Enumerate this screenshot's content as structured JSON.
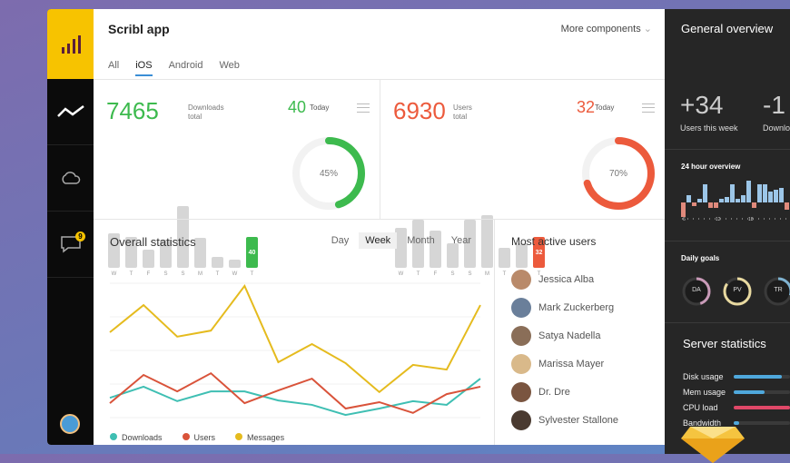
{
  "app": {
    "title": "Scribl app",
    "more_label": "More components",
    "tabs": [
      "All",
      "iOS",
      "Android",
      "Web"
    ],
    "active_tab": "iOS",
    "notification_count": "9"
  },
  "downloads": {
    "value": "7465",
    "label1": "Downloads",
    "label2": "total",
    "today": "40",
    "today_label": "Today",
    "percent": "45%",
    "percent_value": 45,
    "color": "#3dba4e",
    "days": [
      "W",
      "T",
      "F",
      "S",
      "S",
      "M",
      "T",
      "W",
      "T"
    ],
    "bars": [
      56,
      50,
      30,
      46,
      100,
      48,
      17,
      13,
      50
    ],
    "highlight_label": "40"
  },
  "users": {
    "value": "6930",
    "label1": "Users",
    "label2": "total",
    "today": "32",
    "today_label": "Today",
    "percent": "70%",
    "percent_value": 70,
    "color": "#ec5a3c",
    "days": [
      "W",
      "T",
      "F",
      "S",
      "S",
      "M",
      "T",
      "W",
      "T"
    ],
    "bars": [
      65,
      78,
      60,
      40,
      78,
      85,
      33,
      40,
      50
    ],
    "highlight_label": "32"
  },
  "statistics": {
    "title": "Overall statistics",
    "ranges": [
      "Day",
      "Week",
      "Month",
      "Year"
    ],
    "active_range": "Week",
    "chart_data": {
      "type": "line",
      "ylim": [
        0,
        40
      ],
      "series": [
        {
          "name": "Downloads",
          "color": "#3fbfb3",
          "values": [
            5.9,
            9.2,
            4.9,
            7.8,
            7.8,
            5.1,
            3.8,
            0.8,
            2.7,
            4.9,
            3.8,
            11.6
          ]
        },
        {
          "name": "Users",
          "color": "#d9533a",
          "values": [
            4.3,
            12.7,
            7.8,
            13.2,
            4.3,
            8.1,
            11.6,
            2.7,
            4.6,
            1.4,
            7.0,
            9.2
          ]
        },
        {
          "name": "Messages",
          "color": "#e5bb1e",
          "values": [
            25.4,
            33.5,
            24.1,
            25.9,
            39.2,
            16.5,
            21.9,
            16.2,
            7.6,
            15.7,
            14.3,
            33.5
          ]
        }
      ]
    }
  },
  "active_users": {
    "title": "Most active users",
    "list": [
      {
        "name": "Jessica Alba",
        "color": "#b98a6a"
      },
      {
        "name": "Mark Zuckerberg",
        "color": "#6a7f9a"
      },
      {
        "name": "Satya Nadella",
        "color": "#8a6e58"
      },
      {
        "name": "Marissa Mayer",
        "color": "#d9b98a"
      },
      {
        "name": "Dr. Dre",
        "color": "#7a5540"
      },
      {
        "name": "Sylvester Stallone",
        "color": "#4a3a30"
      }
    ]
  },
  "overview": {
    "title": "General overview",
    "stat1_value": "+34",
    "stat1_label": "Users this week",
    "stat2_value": "-1",
    "stat2_label": "Downlo",
    "hour_title": "24 hour overview",
    "hour_ticks": [
      "6",
      "12",
      "18"
    ],
    "hour_bars": [
      -8,
      4,
      -2,
      2,
      10,
      -3,
      -3,
      2,
      3,
      10,
      2,
      4,
      12,
      -3,
      10,
      10,
      6,
      7,
      8,
      -4,
      -5
    ],
    "goals_title": "Daily goals",
    "goals": [
      {
        "label": "DA",
        "color": "#c99ab8",
        "pct": 45
      },
      {
        "label": "PV",
        "color": "#e8d9a0",
        "pct": 85
      },
      {
        "label": "TR",
        "color": "#7fb2d0",
        "pct": 30
      }
    ],
    "server_title": "Server statistics",
    "server": [
      {
        "label": "Disk usage",
        "pct": 85,
        "color": "#4fa8dc"
      },
      {
        "label": "Mem usage",
        "pct": 55,
        "color": "#4fa8dc"
      },
      {
        "label": "CPU load",
        "pct": 100,
        "color": "#e04868"
      },
      {
        "label": "Bandwidth",
        "pct": 10,
        "color": "#4fa8dc"
      }
    ]
  }
}
